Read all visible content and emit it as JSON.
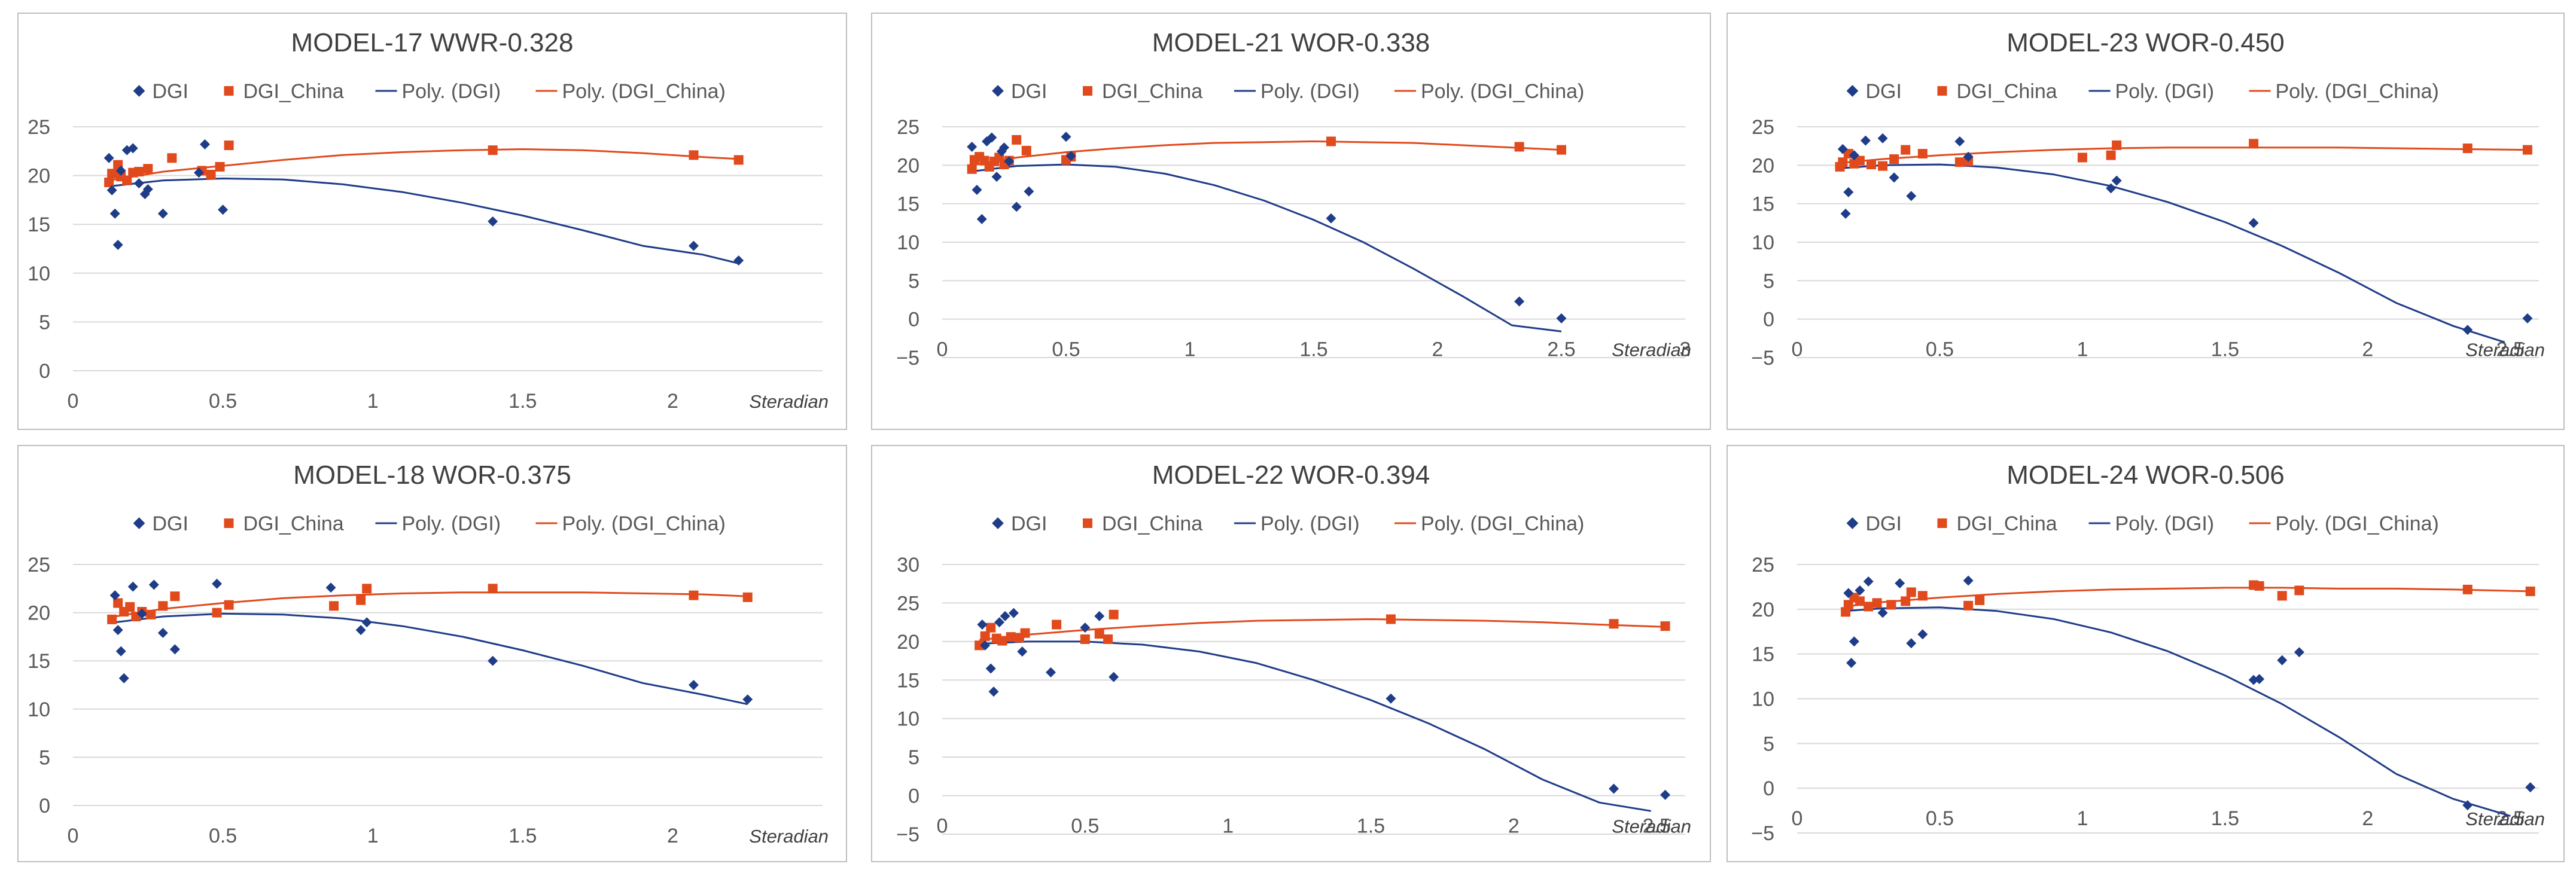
{
  "legend_labels": {
    "dgi": "DGI",
    "dgi_china": "DGI_China",
    "poly_dgi": "Poly. (DGI)",
    "poly_dgi_china": "Poly. (DGI_China)"
  },
  "colors": {
    "dgi": "#1f3c88",
    "dgi_china": "#e04a1c",
    "grid": "#d9d9d9",
    "border": "#bfbfbf",
    "text": "#595959"
  },
  "chart_data": [
    {
      "type": "scatter",
      "title": "MODEL-17 WWR-0.328",
      "xlabel": "Steradian",
      "ylabel": "",
      "xlim": [
        0,
        2.5
      ],
      "ylim": [
        0,
        25
      ],
      "xticks": [
        0,
        0.5,
        1,
        1.5,
        2
      ],
      "xtick_labels": [
        "0",
        "0.5",
        "1",
        "1.5",
        "2"
      ],
      "yticks": [
        0,
        5,
        10,
        15,
        20,
        25
      ],
      "ytick_labels": [
        "0",
        "5",
        "10",
        "15",
        "20",
        "25"
      ],
      "series": [
        {
          "name": "DGI",
          "x": [
            0.12,
            0.13,
            0.14,
            0.15,
            0.16,
            0.18,
            0.2,
            0.22,
            0.24,
            0.25,
            0.3,
            0.42,
            0.44,
            0.5,
            1.4,
            2.07,
            2.22
          ],
          "y": [
            21.8,
            18.5,
            16.1,
            12.9,
            20.5,
            22.6,
            22.8,
            19.2,
            18.1,
            18.6,
            16.1,
            20.3,
            23.2,
            16.5,
            15.3,
            12.8,
            11.3
          ]
        },
        {
          "name": "DGI_China",
          "x": [
            0.12,
            0.13,
            0.15,
            0.16,
            0.18,
            0.2,
            0.22,
            0.25,
            0.33,
            0.43,
            0.46,
            0.49,
            0.52,
            1.4,
            2.07,
            2.22
          ],
          "y": [
            19.3,
            20.2,
            21.1,
            19.9,
            19.5,
            20.3,
            20.4,
            20.7,
            21.8,
            20.5,
            20.1,
            20.9,
            23.1,
            22.6,
            22.1,
            21.6
          ]
        }
      ],
      "trend_dgi": {
        "name": "Poly. (DGI)",
        "x": [
          0.12,
          0.3,
          0.5,
          0.7,
          0.9,
          1.1,
          1.3,
          1.5,
          1.7,
          1.9,
          2.1,
          2.22
        ],
        "y": [
          18.9,
          19.5,
          19.7,
          19.6,
          19.1,
          18.3,
          17.2,
          15.9,
          14.4,
          12.8,
          11.9,
          11.0
        ]
      },
      "trend_china": {
        "name": "Poly. (DGI_China)",
        "x": [
          0.12,
          0.3,
          0.5,
          0.7,
          0.9,
          1.1,
          1.3,
          1.5,
          1.7,
          1.9,
          2.1,
          2.22
        ],
        "y": [
          19.5,
          20.4,
          21.0,
          21.6,
          22.1,
          22.4,
          22.6,
          22.7,
          22.6,
          22.3,
          21.9,
          21.7
        ]
      }
    },
    {
      "type": "scatter",
      "title": "MODEL-21 WOR-0.338",
      "xlabel": "Steradian",
      "ylabel": "",
      "xlim": [
        0,
        3
      ],
      "ylim": [
        -5,
        25
      ],
      "xticks": [
        0,
        0.5,
        1,
        1.5,
        2,
        2.5,
        3
      ],
      "xtick_labels": [
        "0",
        "0.5",
        "1",
        "1.5",
        "2",
        "2.5",
        "3"
      ],
      "yticks": [
        -5,
        0,
        5,
        10,
        15,
        20,
        25
      ],
      "ytick_labels": [
        "−5",
        "0",
        "5",
        "10",
        "15",
        "20",
        "25"
      ],
      "series": [
        {
          "name": "DGI",
          "x": [
            0.12,
            0.14,
            0.16,
            0.18,
            0.2,
            0.22,
            0.24,
            0.25,
            0.27,
            0.3,
            0.35,
            0.5,
            0.52,
            1.57,
            2.33,
            2.5
          ],
          "y": [
            22.4,
            16.8,
            13.0,
            23.1,
            23.6,
            18.5,
            21.8,
            22.3,
            20.5,
            14.6,
            16.6,
            23.7,
            21.2,
            13.1,
            2.3,
            0.1
          ]
        },
        {
          "name": "DGI_China",
          "x": [
            0.12,
            0.13,
            0.15,
            0.17,
            0.19,
            0.21,
            0.23,
            0.25,
            0.27,
            0.3,
            0.34,
            0.5,
            0.52,
            1.57,
            2.33,
            2.5
          ],
          "y": [
            19.5,
            20.7,
            21.1,
            20.6,
            19.8,
            20.5,
            21.0,
            20.1,
            20.6,
            23.3,
            21.9,
            20.7,
            21.1,
            23.1,
            22.4,
            22.0
          ]
        }
      ],
      "trend_dgi": {
        "name": "Poly. (DGI)",
        "x": [
          0.12,
          0.3,
          0.5,
          0.7,
          0.9,
          1.1,
          1.3,
          1.5,
          1.7,
          1.9,
          2.1,
          2.3,
          2.5
        ],
        "y": [
          19.2,
          19.9,
          20.1,
          19.8,
          18.9,
          17.4,
          15.4,
          12.9,
          10.0,
          6.6,
          3.0,
          -0.8,
          -1.6
        ]
      },
      "trend_china": {
        "name": "Poly. (DGI_China)",
        "x": [
          0.12,
          0.3,
          0.5,
          0.7,
          0.9,
          1.1,
          1.3,
          1.5,
          1.7,
          1.9,
          2.1,
          2.3,
          2.5
        ],
        "y": [
          20.0,
          21.0,
          21.7,
          22.2,
          22.6,
          22.9,
          23.0,
          23.1,
          23.0,
          22.9,
          22.6,
          22.3,
          22.0
        ]
      }
    },
    {
      "type": "scatter",
      "title": "MODEL-23 WOR-0.450",
      "xlabel": "Steradian",
      "ylabel": "",
      "xlim": [
        0,
        2.6
      ],
      "ylim": [
        -5,
        25
      ],
      "xticks": [
        0,
        0.5,
        1,
        1.5,
        2,
        2.5
      ],
      "xtick_labels": [
        "0",
        "0.5",
        "1",
        "1.5",
        "2",
        "2.5"
      ],
      "yticks": [
        -5,
        0,
        5,
        10,
        15,
        20,
        25
      ],
      "ytick_labels": [
        "−5",
        "0",
        "5",
        "10",
        "15",
        "20",
        "25"
      ],
      "series": [
        {
          "name": "DGI",
          "x": [
            0.16,
            0.17,
            0.18,
            0.2,
            0.24,
            0.3,
            0.34,
            0.4,
            0.57,
            0.6,
            1.1,
            1.12,
            1.6,
            2.35,
            2.56
          ],
          "y": [
            22.1,
            13.7,
            16.5,
            21.3,
            23.2,
            23.5,
            18.4,
            16.0,
            23.1,
            21.1,
            17.0,
            18.0,
            12.5,
            -1.4,
            0.1
          ]
        },
        {
          "name": "DGI_China",
          "x": [
            0.15,
            0.16,
            0.18,
            0.2,
            0.22,
            0.26,
            0.3,
            0.34,
            0.38,
            0.44,
            0.57,
            0.6,
            1.0,
            1.1,
            1.12,
            1.6,
            2.35,
            2.56
          ],
          "y": [
            19.8,
            20.4,
            21.5,
            20.2,
            20.6,
            20.1,
            19.9,
            20.8,
            22.0,
            21.5,
            20.4,
            20.5,
            21.0,
            21.3,
            22.6,
            22.8,
            22.2,
            22.0
          ]
        }
      ],
      "trend_dgi": {
        "name": "Poly. (DGI)",
        "x": [
          0.15,
          0.3,
          0.5,
          0.7,
          0.9,
          1.1,
          1.3,
          1.5,
          1.7,
          1.9,
          2.1,
          2.3,
          2.48
        ],
        "y": [
          19.6,
          20.0,
          20.1,
          19.7,
          18.8,
          17.3,
          15.2,
          12.6,
          9.5,
          6.0,
          2.1,
          -0.9,
          -3.0
        ]
      },
      "trend_china": {
        "name": "Poly. (DGI_China)",
        "x": [
          0.15,
          0.3,
          0.5,
          0.7,
          0.9,
          1.1,
          1.3,
          1.5,
          1.7,
          1.9,
          2.1,
          2.3,
          2.56
        ],
        "y": [
          20.3,
          20.8,
          21.3,
          21.7,
          22.0,
          22.2,
          22.3,
          22.3,
          22.3,
          22.3,
          22.2,
          22.1,
          22.0
        ]
      }
    },
    {
      "type": "scatter",
      "title": "MODEL-18 WOR-0.375",
      "xlabel": "Steradian",
      "ylabel": "",
      "xlim": [
        0,
        2.5
      ],
      "ylim": [
        0,
        25
      ],
      "xticks": [
        0,
        0.5,
        1,
        1.5,
        2
      ],
      "xtick_labels": [
        "0",
        "0.5",
        "1",
        "1.5",
        "2"
      ],
      "yticks": [
        0,
        5,
        10,
        15,
        20,
        25
      ],
      "ytick_labels": [
        "0",
        "5",
        "10",
        "15",
        "20",
        "25"
      ],
      "series": [
        {
          "name": "DGI",
          "x": [
            0.14,
            0.15,
            0.16,
            0.17,
            0.2,
            0.23,
            0.27,
            0.3,
            0.34,
            0.48,
            0.86,
            0.96,
            0.98,
            1.4,
            2.07,
            2.25
          ],
          "y": [
            21.8,
            18.2,
            16.0,
            13.2,
            22.7,
            19.9,
            22.9,
            17.9,
            16.2,
            23.0,
            22.6,
            18.2,
            19.0,
            15.0,
            12.5,
            11.0
          ]
        },
        {
          "name": "DGI_China",
          "x": [
            0.13,
            0.15,
            0.17,
            0.19,
            0.21,
            0.23,
            0.26,
            0.3,
            0.34,
            0.48,
            0.52,
            0.87,
            0.96,
            0.98,
            1.4,
            2.07,
            2.25
          ],
          "y": [
            19.3,
            21.0,
            20.1,
            20.6,
            19.6,
            20.1,
            19.8,
            20.7,
            21.7,
            20.0,
            20.8,
            20.7,
            21.3,
            22.5,
            22.5,
            21.8,
            21.6
          ]
        }
      ],
      "trend_dgi": {
        "name": "Poly. (DGI)",
        "x": [
          0.14,
          0.3,
          0.5,
          0.7,
          0.9,
          1.1,
          1.3,
          1.5,
          1.7,
          1.9,
          2.1,
          2.25
        ],
        "y": [
          19.0,
          19.6,
          19.9,
          19.8,
          19.4,
          18.6,
          17.5,
          16.1,
          14.5,
          12.7,
          11.5,
          10.5
        ]
      },
      "trend_china": {
        "name": "Poly. (DGI_China)",
        "x": [
          0.14,
          0.3,
          0.5,
          0.7,
          0.9,
          1.1,
          1.3,
          1.5,
          1.7,
          1.9,
          2.1,
          2.25
        ],
        "y": [
          19.6,
          20.4,
          21.0,
          21.5,
          21.8,
          22.0,
          22.1,
          22.1,
          22.1,
          22.0,
          21.9,
          21.7
        ]
      }
    },
    {
      "type": "scatter",
      "title": "MODEL-22 WOR-0.394",
      "xlabel": "Steradian",
      "ylabel": "",
      "xlim": [
        0,
        2.6
      ],
      "ylim": [
        -5,
        30
      ],
      "xticks": [
        0,
        0.5,
        1,
        1.5,
        2,
        2.5
      ],
      "xtick_labels": [
        "0",
        "0.5",
        "1",
        "1.5",
        "2",
        "2.5"
      ],
      "yticks": [
        -5,
        0,
        5,
        10,
        15,
        20,
        25,
        30
      ],
      "ytick_labels": [
        "−5",
        "0",
        "5",
        "10",
        "15",
        "20",
        "25",
        "30"
      ],
      "series": [
        {
          "name": "DGI",
          "x": [
            0.14,
            0.15,
            0.17,
            0.18,
            0.2,
            0.22,
            0.25,
            0.28,
            0.38,
            0.5,
            0.55,
            0.6,
            1.57,
            2.35,
            2.53
          ],
          "y": [
            22.2,
            19.5,
            16.5,
            13.5,
            22.5,
            23.3,
            23.7,
            18.7,
            16.0,
            21.8,
            23.3,
            15.4,
            12.6,
            0.9,
            0.1
          ]
        },
        {
          "name": "DGI_China",
          "x": [
            0.13,
            0.15,
            0.17,
            0.19,
            0.21,
            0.24,
            0.27,
            0.29,
            0.4,
            0.5,
            0.55,
            0.58,
            0.6,
            1.57,
            2.35,
            2.53
          ],
          "y": [
            19.5,
            20.7,
            21.8,
            20.4,
            20.1,
            20.6,
            20.5,
            21.1,
            22.2,
            20.3,
            21.0,
            20.3,
            23.5,
            22.9,
            22.3,
            22.0
          ]
        }
      ],
      "trend_dgi": {
        "name": "Poly. (DGI)",
        "x": [
          0.13,
          0.3,
          0.5,
          0.7,
          0.9,
          1.1,
          1.3,
          1.5,
          1.7,
          1.9,
          2.1,
          2.3,
          2.48
        ],
        "y": [
          19.7,
          20.0,
          20.0,
          19.6,
          18.7,
          17.2,
          15.0,
          12.4,
          9.4,
          6.0,
          2.1,
          -0.9,
          -2.0
        ]
      },
      "trend_china": {
        "name": "Poly. (DGI_China)",
        "x": [
          0.13,
          0.3,
          0.5,
          0.7,
          0.9,
          1.1,
          1.3,
          1.5,
          1.7,
          1.9,
          2.1,
          2.3,
          2.53
        ],
        "y": [
          20.2,
          20.9,
          21.5,
          22.0,
          22.4,
          22.7,
          22.8,
          22.9,
          22.8,
          22.7,
          22.5,
          22.2,
          21.9
        ]
      }
    },
    {
      "type": "scatter",
      "title": "MODEL-24 WOR-0.506",
      "xlabel": "Steradian",
      "ylabel": "",
      "xlim": [
        0,
        2.6
      ],
      "ylim": [
        -5,
        25
      ],
      "xticks": [
        0,
        0.5,
        1,
        1.5,
        2,
        2.5
      ],
      "xtick_labels": [
        "0",
        "0.5",
        "1",
        "1.5",
        "2",
        "2.5"
      ],
      "yticks": [
        -5,
        0,
        5,
        10,
        15,
        20,
        25
      ],
      "ytick_labels": [
        "−5",
        "0",
        "5",
        "10",
        "15",
        "20",
        "25"
      ],
      "series": [
        {
          "name": "DGI",
          "x": [
            0.18,
            0.19,
            0.2,
            0.22,
            0.25,
            0.3,
            0.36,
            0.4,
            0.44,
            0.6,
            1.6,
            1.62,
            1.7,
            1.76,
            2.35,
            2.57
          ],
          "y": [
            21.8,
            14.0,
            16.4,
            22.1,
            23.1,
            19.6,
            22.9,
            16.2,
            17.2,
            23.2,
            12.1,
            12.2,
            14.3,
            15.2,
            -1.9,
            0.1
          ]
        },
        {
          "name": "DGI_China",
          "x": [
            0.17,
            0.18,
            0.2,
            0.22,
            0.25,
            0.28,
            0.33,
            0.38,
            0.4,
            0.44,
            0.6,
            0.64,
            1.6,
            1.62,
            1.7,
            1.76,
            2.35,
            2.57
          ],
          "y": [
            19.7,
            20.5,
            21.3,
            20.9,
            20.3,
            20.7,
            20.5,
            20.9,
            21.9,
            21.5,
            20.4,
            21.0,
            22.7,
            22.6,
            21.5,
            22.1,
            22.2,
            22.0
          ]
        }
      ],
      "trend_dgi": {
        "name": "Poly. (DGI)",
        "x": [
          0.17,
          0.3,
          0.5,
          0.7,
          0.9,
          1.1,
          1.3,
          1.5,
          1.7,
          1.9,
          2.1,
          2.3,
          2.5
        ],
        "y": [
          19.8,
          20.1,
          20.2,
          19.8,
          18.9,
          17.4,
          15.3,
          12.6,
          9.4,
          5.7,
          1.6,
          -1.2,
          -3.1
        ]
      },
      "trend_china": {
        "name": "Poly. (DGI_China)",
        "x": [
          0.17,
          0.3,
          0.5,
          0.7,
          0.9,
          1.1,
          1.3,
          1.5,
          1.7,
          1.9,
          2.1,
          2.3,
          2.57
        ],
        "y": [
          20.3,
          20.8,
          21.3,
          21.7,
          22.0,
          22.2,
          22.3,
          22.4,
          22.4,
          22.3,
          22.3,
          22.2,
          22.0
        ]
      }
    }
  ]
}
